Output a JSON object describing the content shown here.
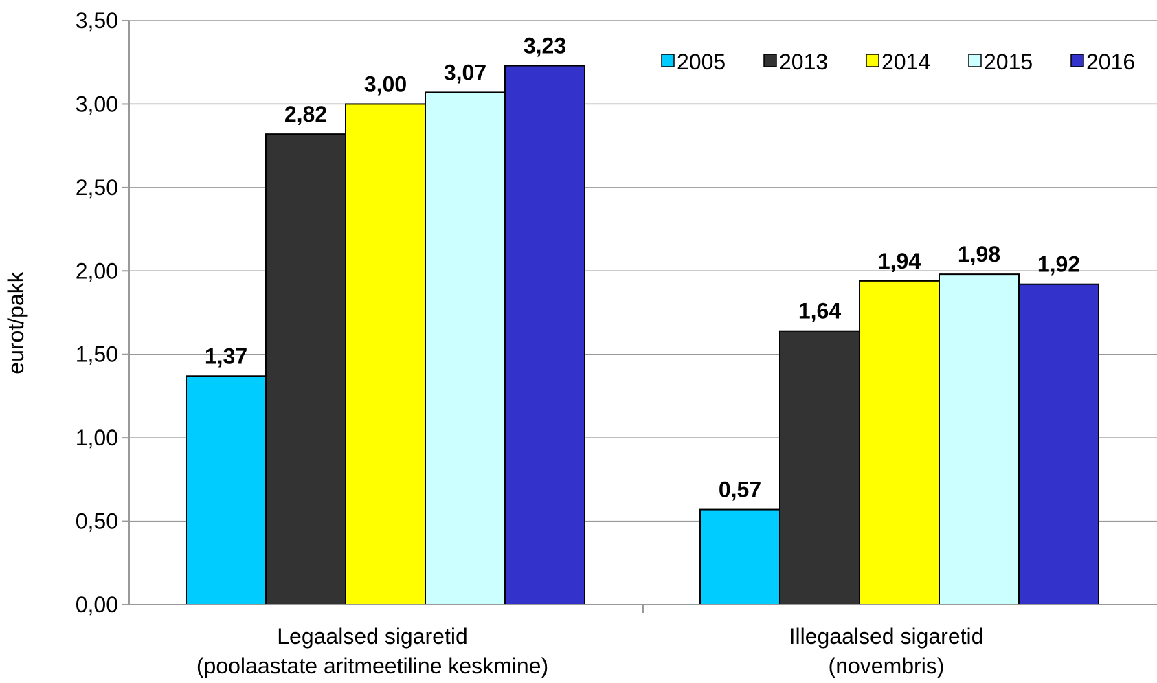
{
  "chart_data": {
    "type": "bar",
    "ylabel": "eurot/pakk",
    "ylim": [
      0,
      3.5
    ],
    "yticks": [
      "0,00",
      "0,50",
      "1,00",
      "1,50",
      "2,00",
      "2,50",
      "3,00",
      "3,50"
    ],
    "categories": [
      [
        "Legaalsed sigaretid",
        "(poolaastate aritmeetiline keskmine)"
      ],
      [
        "Illegaalsed sigaretid",
        "(novembris)"
      ]
    ],
    "series": [
      {
        "name": "2005",
        "color": "#00CCFF",
        "values": [
          1.37,
          0.57
        ],
        "labels": [
          "1,37",
          "0,57"
        ]
      },
      {
        "name": "2013",
        "color": "#333333",
        "values": [
          2.82,
          1.64
        ],
        "labels": [
          "2,82",
          "1,64"
        ]
      },
      {
        "name": "2014",
        "color": "#FFFF00",
        "values": [
          3.0,
          1.94
        ],
        "labels": [
          "3,00",
          "1,94"
        ]
      },
      {
        "name": "2015",
        "color": "#CCFFFF",
        "values": [
          3.07,
          1.98
        ],
        "labels": [
          "3,07",
          "1,98"
        ]
      },
      {
        "name": "2016",
        "color": "#3333CC",
        "values": [
          3.23,
          1.92
        ],
        "labels": [
          "3,23",
          "1,92"
        ]
      }
    ],
    "grid": true,
    "legend": "top-right"
  }
}
